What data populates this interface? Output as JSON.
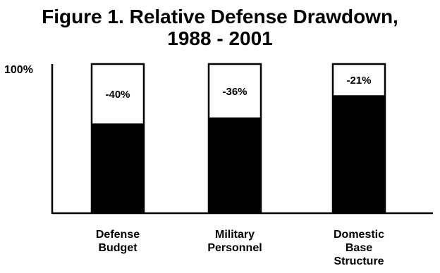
{
  "chart_data": {
    "type": "bar",
    "title": "Figure 1.  Relative Defense Drawdown, 1988 - 2001",
    "title_lines": [
      "Figure 1.  Relative Defense Drawdown,",
      "1988 - 2001"
    ],
    "categories": [
      [
        "Defense",
        "Budget"
      ],
      [
        "Military",
        "Personnel"
      ],
      [
        "Domestic",
        "Base",
        "Structure"
      ]
    ],
    "values": [
      60,
      64,
      79
    ],
    "reduction_labels": [
      "-40%",
      "-36%",
      "-21%"
    ],
    "baseline": 100,
    "ylim": [
      0,
      100
    ],
    "y_tick_label": "100%",
    "stacked_segments": [
      "remaining",
      "reduction"
    ],
    "colors": {
      "remaining": "#000000",
      "reduction": "#ffffff",
      "outline": "#000000"
    },
    "grid": false,
    "legend": "none"
  }
}
